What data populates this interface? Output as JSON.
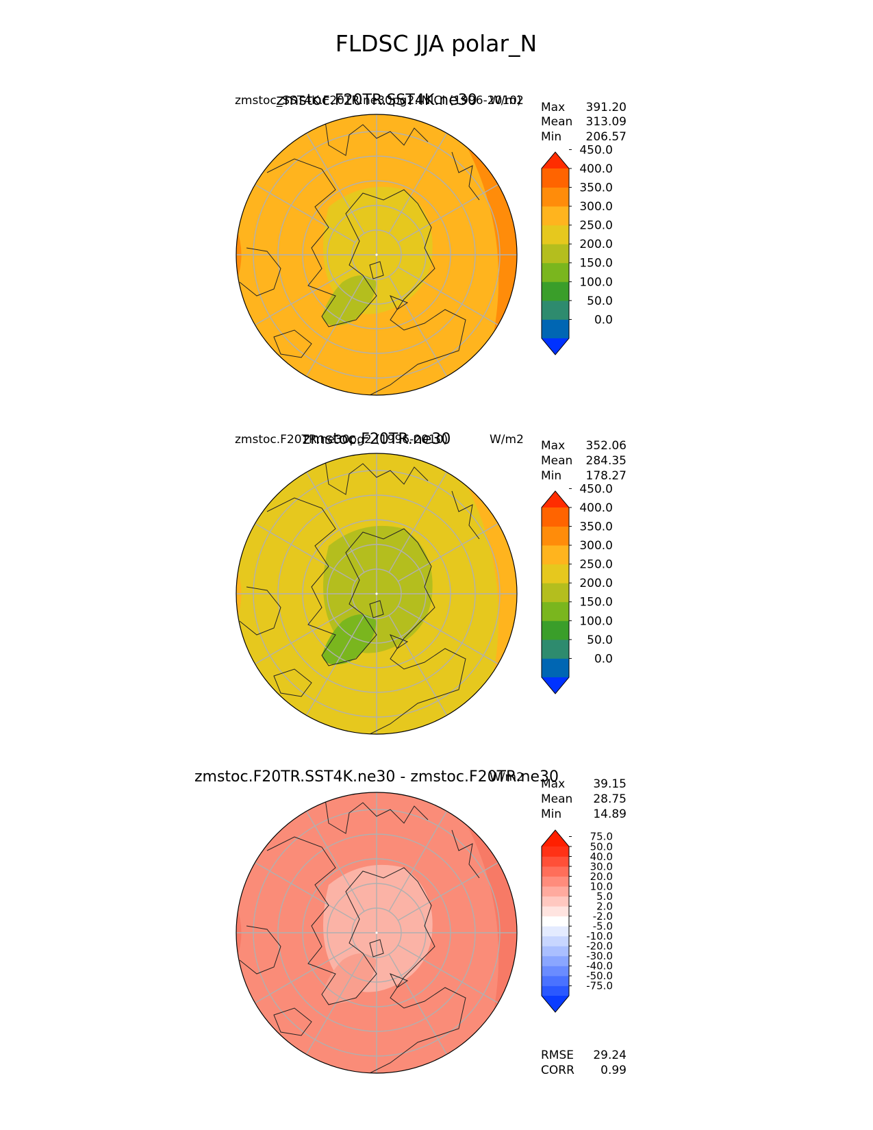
{
  "figure_title": "FLDSC JJA polar_N",
  "chart_data": [
    {
      "type": "heatmap",
      "projection": "north-polar-stereographic",
      "title": "zmstoc.F20TR.SST4K.ne30",
      "subtitle_left": "zmstoc_SST4K.F20TR.ne30pg2.INICI (1996-2010)",
      "subtitle_right": "W/m2",
      "stats": {
        "Max": "391.20",
        "Mean": "313.09",
        "Min": "206.57"
      },
      "colorbar": {
        "levels": [
          "0.0",
          "50.0",
          "100.0",
          "150.0",
          "200.0",
          "250.0",
          "300.0",
          "350.0",
          "400.0",
          "450.0"
        ],
        "colors": [
          "#0032ff",
          "#0066b3",
          "#2e8b6e",
          "#3a9e2a",
          "#7ab61e",
          "#b4be1e",
          "#e6c81e",
          "#ffb41e",
          "#ff8c0a",
          "#ff6400",
          "#ff2d00"
        ],
        "extend": "both"
      },
      "field": {
        "base_color": "#ffb41e",
        "outer_color": "#ff8c0a",
        "inner_color": "#e6c81e",
        "low_color": "#b4be1e"
      }
    },
    {
      "type": "heatmap",
      "projection": "north-polar-stereographic",
      "title": "zmstoc.F20TR.ne30",
      "subtitle_left": "zmstoc.F20TR.ne30pg2 (1996-2010)",
      "subtitle_right": "W/m2",
      "stats": {
        "Max": "352.06",
        "Mean": "284.35",
        "Min": "178.27"
      },
      "colorbar": {
        "levels": [
          "0.0",
          "50.0",
          "100.0",
          "150.0",
          "200.0",
          "250.0",
          "300.0",
          "350.0",
          "400.0",
          "450.0"
        ],
        "colors": [
          "#0032ff",
          "#0066b3",
          "#2e8b6e",
          "#3a9e2a",
          "#7ab61e",
          "#b4be1e",
          "#e6c81e",
          "#ffb41e",
          "#ff8c0a",
          "#ff6400",
          "#ff2d00"
        ],
        "extend": "both"
      },
      "field": {
        "base_color": "#e6c81e",
        "outer_color": "#ffb41e",
        "inner_color": "#b4be1e",
        "low_color": "#7ab61e"
      }
    },
    {
      "type": "heatmap",
      "projection": "north-polar-stereographic",
      "title": "zmstoc.F20TR.SST4K.ne30 - zmstoc.F20TR.ne30",
      "subtitle_right": "W/m2",
      "stats": {
        "Max": "39.15",
        "Mean": "28.75",
        "Min": "14.89"
      },
      "colorbar": {
        "levels": [
          "-75.0",
          "-50.0",
          "-40.0",
          "-30.0",
          "-20.0",
          "-10.0",
          "-5.0",
          "-2.0",
          "2.0",
          "5.0",
          "10.0",
          "20.0",
          "30.0",
          "40.0",
          "50.0",
          "75.0"
        ],
        "colors": [
          "#0a3cff",
          "#2a58ff",
          "#4a72ff",
          "#6a8cff",
          "#8aa6ff",
          "#aabfff",
          "#c8d6ff",
          "#e4ebff",
          "#ffffff",
          "#ffe4e0",
          "#ffc8c0",
          "#ffaa9e",
          "#ff8c7c",
          "#ff6e5a",
          "#ff5038",
          "#ff3216",
          "#ff2000"
        ],
        "extend": "both"
      },
      "field": {
        "base_color": "#fa8c78",
        "outer_color": "#f77a66",
        "inner_color": "#fbb3a6",
        "low_color": "#f99f8e"
      },
      "rmse": {
        "label": "RMSE",
        "value": "29.24"
      },
      "corr": {
        "label": "CORR",
        "value": "0.99"
      }
    }
  ]
}
